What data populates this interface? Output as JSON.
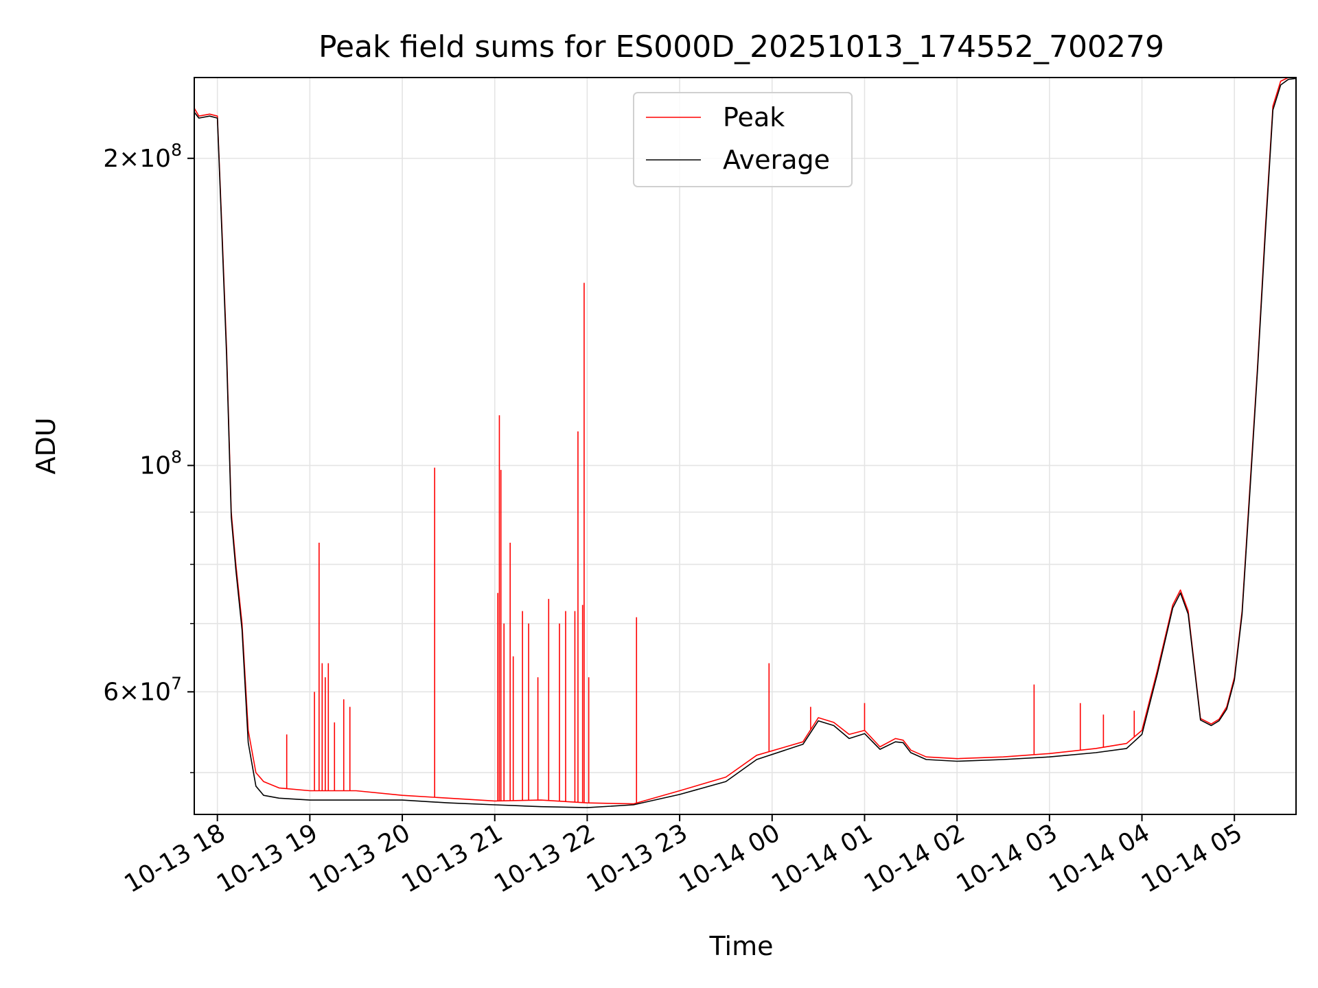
{
  "chart_data": {
    "type": "line",
    "title": "Peak field sums for ES000D_20251013_174552_700279",
    "xlabel": "Time",
    "ylabel": "ADU",
    "y_scale": "log",
    "ylim": [
      45500000,
      240000000
    ],
    "xlim": [
      "2025-10-13 17:45",
      "2025-10-14 05:40"
    ],
    "grid": true,
    "legend_position": "upper center",
    "x_ticks": [
      "2025-10-13 18:00",
      "2025-10-13 19:00",
      "2025-10-13 20:00",
      "2025-10-13 21:00",
      "2025-10-13 22:00",
      "2025-10-13 23:00",
      "2025-10-14 00:00",
      "2025-10-14 01:00",
      "2025-10-14 02:00",
      "2025-10-14 03:00",
      "2025-10-14 04:00",
      "2025-10-14 05:00"
    ],
    "x_tick_labels": [
      "10-13 18",
      "10-13 19",
      "10-13 20",
      "10-13 21",
      "10-13 22",
      "10-13 23",
      "10-14 00",
      "10-14 01",
      "10-14 02",
      "10-14 03",
      "10-14 04",
      "10-14 05"
    ],
    "y_major_ticks": [
      {
        "value": 200000000,
        "mantissa": "2",
        "exponent": "8"
      },
      {
        "value": 100000000,
        "mantissa": "",
        "exponent": "8"
      },
      {
        "value": 60000000,
        "mantissa": "6",
        "exponent": "7"
      }
    ],
    "y_minor_ticks": [
      50000000,
      70000000,
      80000000,
      90000000
    ],
    "series": [
      {
        "name": "Peak",
        "color": "#ff0000",
        "x": [
          "2025-10-13 17:45",
          "2025-10-13 17:48",
          "2025-10-13 17:55",
          "2025-10-13 18:00",
          "2025-10-13 18:03",
          "2025-10-13 18:06",
          "2025-10-13 18:09",
          "2025-10-13 18:12",
          "2025-10-13 18:16",
          "2025-10-13 18:20",
          "2025-10-13 18:25",
          "2025-10-13 18:30",
          "2025-10-13 18:40",
          "2025-10-13 19:00",
          "2025-10-13 19:30",
          "2025-10-13 20:00",
          "2025-10-13 20:30",
          "2025-10-13 21:00",
          "2025-10-13 21:30",
          "2025-10-13 22:00",
          "2025-10-13 22:30",
          "2025-10-13 23:00",
          "2025-10-13 23:30",
          "2025-10-13 23:50",
          "2025-10-14 00:20",
          "2025-10-14 00:30",
          "2025-10-14 00:40",
          "2025-10-14 00:50",
          "2025-10-14 01:00",
          "2025-10-14 01:10",
          "2025-10-14 01:20",
          "2025-10-14 01:25",
          "2025-10-14 01:30",
          "2025-10-14 01:40",
          "2025-10-14 02:00",
          "2025-10-14 02:30",
          "2025-10-14 03:00",
          "2025-10-14 03:30",
          "2025-10-14 03:50",
          "2025-10-14 04:00",
          "2025-10-14 04:10",
          "2025-10-14 04:20",
          "2025-10-14 04:25",
          "2025-10-14 04:30",
          "2025-10-14 04:38",
          "2025-10-14 04:45",
          "2025-10-14 04:50",
          "2025-10-14 04:55",
          "2025-10-14 05:00",
          "2025-10-14 05:05",
          "2025-10-14 05:10",
          "2025-10-14 05:15",
          "2025-10-14 05:20",
          "2025-10-14 05:25",
          "2025-10-14 05:30",
          "2025-10-14 05:35",
          "2025-10-14 05:40"
        ],
        "y": [
          224000000,
          220000000,
          221000000,
          220000000,
          170000000,
          130000000,
          90000000,
          80000000,
          70000000,
          55000000,
          50000000,
          49000000,
          48300000,
          48000000,
          48000000,
          47500000,
          47200000,
          46900000,
          47000000,
          46700000,
          46600000,
          48000000,
          49500000,
          52000000,
          53600000,
          56600000,
          56000000,
          54500000,
          55000000,
          53000000,
          54000000,
          53800000,
          52600000,
          51800000,
          51600000,
          51800000,
          52200000,
          52800000,
          53400000,
          55000000,
          63000000,
          73000000,
          75500000,
          72000000,
          56500000,
          55800000,
          56400000,
          58000000,
          62000000,
          72000000,
          95000000,
          125000000,
          170000000,
          225000000,
          238000000,
          240000000,
          240000000
        ],
        "spikes": [
          {
            "x": "2025-10-13 18:45",
            "y": 54500000
          },
          {
            "x": "2025-10-13 19:03",
            "y": 60000000
          },
          {
            "x": "2025-10-13 19:06",
            "y": 84000000
          },
          {
            "x": "2025-10-13 19:08",
            "y": 64000000
          },
          {
            "x": "2025-10-13 19:10",
            "y": 62000000
          },
          {
            "x": "2025-10-13 19:12",
            "y": 64000000
          },
          {
            "x": "2025-10-13 19:16",
            "y": 56000000
          },
          {
            "x": "2025-10-13 19:22",
            "y": 59000000
          },
          {
            "x": "2025-10-13 19:26",
            "y": 58000000
          },
          {
            "x": "2025-10-13 20:21",
            "y": 99500000
          },
          {
            "x": "2025-10-13 21:02",
            "y": 75000000
          },
          {
            "x": "2025-10-13 21:03",
            "y": 112000000
          },
          {
            "x": "2025-10-13 21:04",
            "y": 99000000
          },
          {
            "x": "2025-10-13 21:06",
            "y": 70000000
          },
          {
            "x": "2025-10-13 21:10",
            "y": 84000000
          },
          {
            "x": "2025-10-13 21:12",
            "y": 65000000
          },
          {
            "x": "2025-10-13 21:18",
            "y": 72000000
          },
          {
            "x": "2025-10-13 21:22",
            "y": 70000000
          },
          {
            "x": "2025-10-13 21:28",
            "y": 62000000
          },
          {
            "x": "2025-10-13 21:35",
            "y": 74000000
          },
          {
            "x": "2025-10-13 21:42",
            "y": 70000000
          },
          {
            "x": "2025-10-13 21:46",
            "y": 72000000
          },
          {
            "x": "2025-10-13 21:52",
            "y": 72000000
          },
          {
            "x": "2025-10-13 21:54",
            "y": 108000000
          },
          {
            "x": "2025-10-13 21:57",
            "y": 73000000
          },
          {
            "x": "2025-10-13 21:58",
            "y": 151000000
          },
          {
            "x": "2025-10-13 22:01",
            "y": 62000000
          },
          {
            "x": "2025-10-13 22:32",
            "y": 71000000
          },
          {
            "x": "2025-10-13 23:58",
            "y": 64000000
          },
          {
            "x": "2025-10-14 00:25",
            "y": 58000000
          },
          {
            "x": "2025-10-14 01:00",
            "y": 58500000
          },
          {
            "x": "2025-10-14 02:50",
            "y": 61000000
          },
          {
            "x": "2025-10-14 03:20",
            "y": 58500000
          },
          {
            "x": "2025-10-14 03:35",
            "y": 57000000
          },
          {
            "x": "2025-10-14 03:55",
            "y": 57500000
          }
        ]
      },
      {
        "name": "Average",
        "color": "#000000",
        "x": [
          "2025-10-13 17:45",
          "2025-10-13 17:48",
          "2025-10-13 17:55",
          "2025-10-13 18:00",
          "2025-10-13 18:03",
          "2025-10-13 18:06",
          "2025-10-13 18:09",
          "2025-10-13 18:12",
          "2025-10-13 18:16",
          "2025-10-13 18:20",
          "2025-10-13 18:25",
          "2025-10-13 18:30",
          "2025-10-13 18:40",
          "2025-10-13 19:00",
          "2025-10-13 19:30",
          "2025-10-13 20:00",
          "2025-10-13 20:30",
          "2025-10-13 21:00",
          "2025-10-13 21:30",
          "2025-10-13 22:00",
          "2025-10-13 22:30",
          "2025-10-13 23:00",
          "2025-10-13 23:30",
          "2025-10-13 23:50",
          "2025-10-14 00:20",
          "2025-10-14 00:30",
          "2025-10-14 00:40",
          "2025-10-14 00:50",
          "2025-10-14 01:00",
          "2025-10-14 01:10",
          "2025-10-14 01:20",
          "2025-10-14 01:25",
          "2025-10-14 01:30",
          "2025-10-14 01:40",
          "2025-10-14 02:00",
          "2025-10-14 02:30",
          "2025-10-14 03:00",
          "2025-10-14 03:30",
          "2025-10-14 03:50",
          "2025-10-14 04:00",
          "2025-10-14 04:10",
          "2025-10-14 04:20",
          "2025-10-14 04:25",
          "2025-10-14 04:30",
          "2025-10-14 04:38",
          "2025-10-14 04:45",
          "2025-10-14 04:50",
          "2025-10-14 04:55",
          "2025-10-14 05:00",
          "2025-10-14 05:05",
          "2025-10-14 05:10",
          "2025-10-14 05:15",
          "2025-10-14 05:20",
          "2025-10-14 05:25",
          "2025-10-14 05:30",
          "2025-10-14 05:35",
          "2025-10-14 05:40"
        ],
        "y": [
          222000000,
          219000000,
          220000000,
          219000000,
          168000000,
          128000000,
          89000000,
          79000000,
          69000000,
          53500000,
          48500000,
          47500000,
          47200000,
          47000000,
          47000000,
          47000000,
          46700000,
          46500000,
          46300000,
          46200000,
          46500000,
          47600000,
          49000000,
          51500000,
          53300000,
          56200000,
          55600000,
          54000000,
          54600000,
          52700000,
          53600000,
          53500000,
          52300000,
          51500000,
          51300000,
          51500000,
          51800000,
          52300000,
          52800000,
          54500000,
          62500000,
          72500000,
          75000000,
          71500000,
          56300000,
          55600000,
          56200000,
          57700000,
          61600000,
          71500000,
          94000000,
          124000000,
          168000000,
          223000000,
          236000000,
          239000000,
          239500000
        ]
      }
    ]
  }
}
